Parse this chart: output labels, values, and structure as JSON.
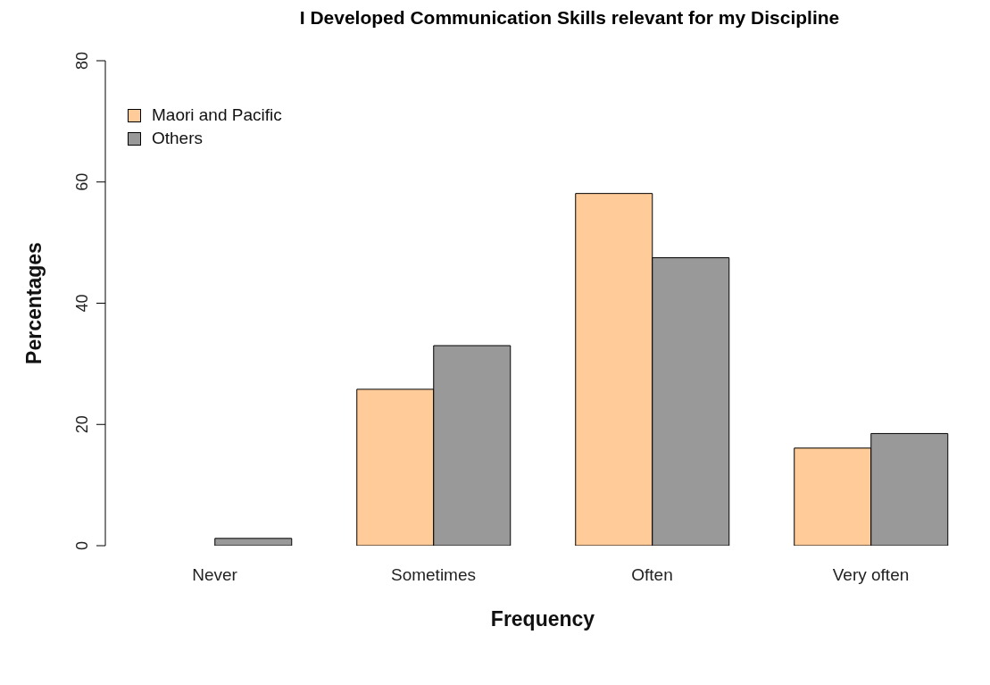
{
  "chart_data": {
    "type": "bar",
    "title": "I Developed Communication Skills relevant for my Discipline",
    "xlabel": "Frequency",
    "ylabel": "Percentages",
    "categories": [
      "Never",
      "Sometimes",
      "Often",
      "Very often"
    ],
    "series": [
      {
        "name": "Maori and Pacific",
        "color": "#ffcc99",
        "values": [
          0,
          25.8,
          58.1,
          16.1
        ]
      },
      {
        "name": "Others",
        "color": "#999999",
        "values": [
          1.2,
          33.0,
          47.5,
          18.5
        ]
      }
    ],
    "ylim": [
      0,
      80
    ],
    "yticks": [
      0,
      20,
      40,
      60,
      80
    ],
    "grid": false,
    "legend": "top left"
  }
}
